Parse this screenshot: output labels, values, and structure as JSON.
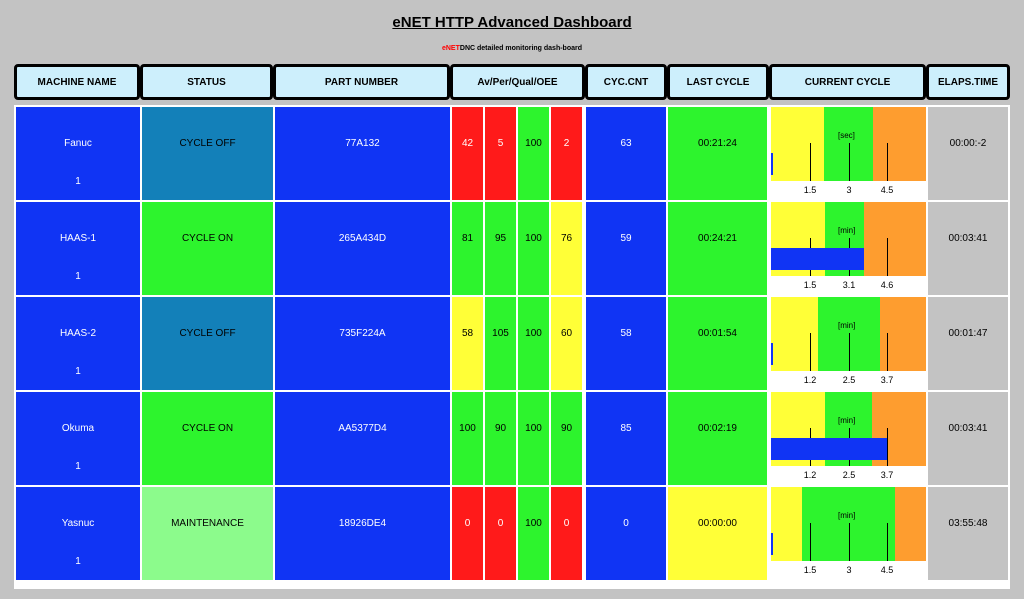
{
  "title": "eNET HTTP Advanced Dashboard",
  "subtitle": {
    "brand": "eNET",
    "rest": "DNC detailed monitoring dash-board"
  },
  "headers": {
    "machine": "MACHINE NAME",
    "status": "STATUS",
    "part": "PART NUMBER",
    "oee": "Av/Per/Qual/OEE",
    "cyc": "CYC.CNT",
    "last": "LAST CYCLE",
    "current": "CURRENT CYCLE",
    "elaps": "ELAPS.TIME"
  },
  "colors": {
    "blue": "#1034f4",
    "green": "#2df42d",
    "red": "#ff1a1a",
    "yellow": "#ffff37",
    "orange": "#fe9d2f",
    "teal": "#1380b9",
    "maintenance_green": "#8cfb8c",
    "header_bg": "#cdeffc",
    "page_bg": "#c3c3c3"
  },
  "rows": [
    {
      "name": "Fanuc",
      "id": "1",
      "status": "CYCLE OFF",
      "status_color": "teal",
      "part": "77A132",
      "oee": [
        {
          "v": "42",
          "c": "red"
        },
        {
          "v": "5",
          "c": "red"
        },
        {
          "v": "100",
          "c": "green"
        },
        {
          "v": "2",
          "c": "red"
        }
      ],
      "cyc": "63",
      "last": "00:21:24",
      "last_color": "green",
      "current": {
        "unit": "[sec]",
        "labels": [
          "1.5",
          "3",
          "4.5"
        ],
        "progress": 0.01
      },
      "elaps": "00:00:-2"
    },
    {
      "name": "HAAS-1",
      "id": "1",
      "status": "CYCLE ON",
      "status_color": "green",
      "part": "265A434D",
      "oee": [
        {
          "v": "81",
          "c": "green"
        },
        {
          "v": "95",
          "c": "green"
        },
        {
          "v": "100",
          "c": "green"
        },
        {
          "v": "76",
          "c": "yellow"
        }
      ],
      "cyc": "59",
      "last": "00:24:21",
      "last_color": "green",
      "current": {
        "unit": "[min]",
        "labels": [
          "1.5",
          "3.1",
          "4.6"
        ],
        "progress": 0.6
      },
      "elaps": "00:03:41"
    },
    {
      "name": "HAAS-2",
      "id": "1",
      "status": "CYCLE OFF",
      "status_color": "teal",
      "part": "735F224A",
      "oee": [
        {
          "v": "58",
          "c": "yellow"
        },
        {
          "v": "105",
          "c": "green"
        },
        {
          "v": "100",
          "c": "green"
        },
        {
          "v": "60",
          "c": "yellow"
        }
      ],
      "cyc": "58",
      "last": "00:01:54",
      "last_color": "green",
      "current": {
        "unit": "[min]",
        "labels": [
          "1.2",
          "2.5",
          "3.7"
        ],
        "progress": 0.01
      },
      "elaps": "00:01:47"
    },
    {
      "name": "Okuma",
      "id": "1",
      "status": "CYCLE ON",
      "status_color": "green",
      "part": "AA5377D4",
      "oee": [
        {
          "v": "100",
          "c": "green"
        },
        {
          "v": "90",
          "c": "green"
        },
        {
          "v": "100",
          "c": "green"
        },
        {
          "v": "90",
          "c": "green"
        }
      ],
      "cyc": "85",
      "last": "00:02:19",
      "last_color": "green",
      "current": {
        "unit": "[min]",
        "labels": [
          "1.2",
          "2.5",
          "3.7"
        ],
        "progress": 0.75
      },
      "elaps": "00:03:41"
    },
    {
      "name": "Yasnuc",
      "id": "1",
      "status": "MAINTENANCE",
      "status_color": "maintenance_green",
      "part": "18926DE4",
      "oee": [
        {
          "v": "0",
          "c": "red"
        },
        {
          "v": "0",
          "c": "red"
        },
        {
          "v": "100",
          "c": "green"
        },
        {
          "v": "0",
          "c": "red"
        }
      ],
      "cyc": "0",
      "last": "00:00:00",
      "last_color": "yellow",
      "current": {
        "unit": "[min]",
        "labels": [
          "1.5",
          "3",
          "4.5"
        ],
        "progress": 0.01
      },
      "elaps": "03:55:48"
    }
  ]
}
